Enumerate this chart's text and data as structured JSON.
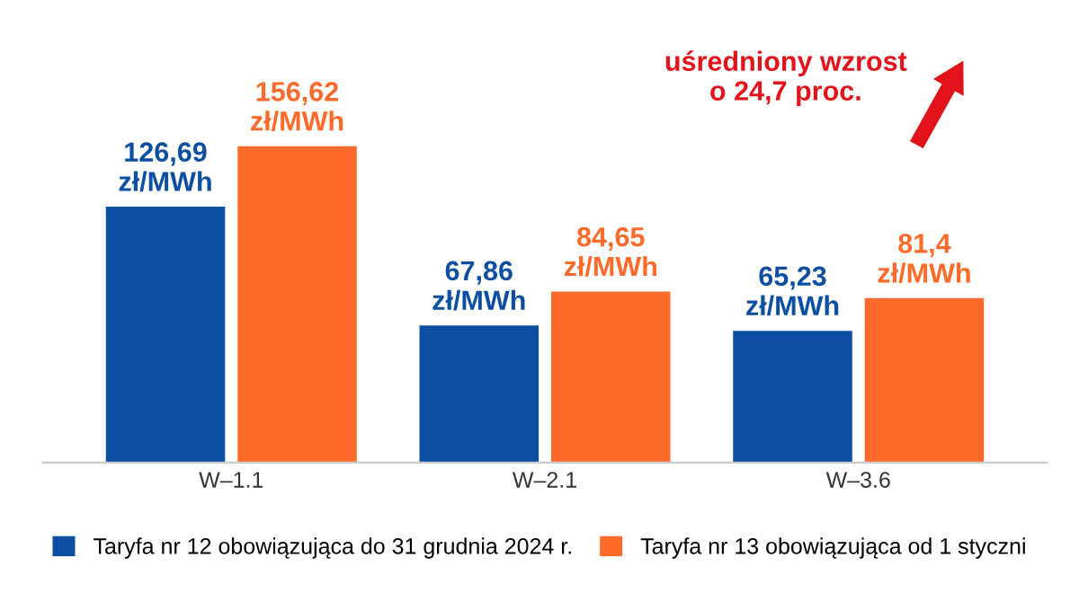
{
  "chart_data": {
    "type": "bar",
    "categories": [
      "W–1.1",
      "W–2.1",
      "W–3.6"
    ],
    "series": [
      {
        "name": "Taryfa nr 12 obowiązująca do 31 grudnia 2024 r.",
        "color": "#0b4ea2",
        "values": [
          126.69,
          67.86,
          65.23
        ],
        "value_labels": [
          "126,69\nzł/MWh",
          "67,86\nzł/MWh",
          "65,23\nzł/MWh"
        ]
      },
      {
        "name": "Taryfa nr 13 obowiązująca od 1 styczni",
        "color": "#fd6a2a",
        "values": [
          156.62,
          84.65,
          81.4
        ],
        "value_labels": [
          "156,62\nzł/MWh",
          "84,65\nzł/MWh",
          "81,4\nzł/MWh"
        ]
      }
    ],
    "tick_labels": "x",
    "grid": false,
    "legend": "bottom",
    "annotations": [
      "uśredniony wzrost\no 24,7 proc."
    ]
  }
}
